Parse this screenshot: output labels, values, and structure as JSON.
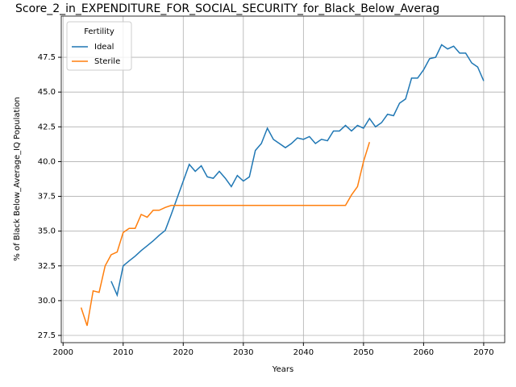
{
  "chart_data": {
    "type": "line",
    "title": "Score_2_in_EXPENDITURE_FOR_SOCIAL_SECURITY_for_Black_Below_Averag",
    "xlabel": "Years",
    "ylabel": "% of Black Below_Average_IQ Population",
    "legend_title": "Fertility",
    "legend_loc": "upper left",
    "grid": true,
    "xlim": [
      1999.7,
      2073.5
    ],
    "xticks": [
      2000,
      2010,
      2020,
      2030,
      2040,
      2050,
      2060,
      2070
    ],
    "ylim": [
      26.98,
      50.46
    ],
    "yticks": [
      27.5,
      {
        "value": 30,
        "label": "30.0"
      },
      32.5,
      {
        "value": 35,
        "label": "35.0"
      },
      37.5,
      {
        "value": 40,
        "label": "40.0"
      },
      42.5,
      {
        "value": 45,
        "label": "45.0"
      },
      47.5
    ],
    "series": [
      {
        "name": "Ideal",
        "color": "#1f77b4",
        "x": [
          2008,
          2009,
          2010,
          2011,
          2012,
          2013,
          2014,
          2015,
          2016,
          2017,
          2018,
          2019,
          2020,
          2021,
          2022,
          2023,
          2024,
          2025,
          2026,
          2027,
          2028,
          2029,
          2030,
          2031,
          2032,
          2033,
          2034,
          2035,
          2036,
          2037,
          2038,
          2039,
          2040,
          2041,
          2042,
          2043,
          2044,
          2045,
          2046,
          2047,
          2048,
          2049,
          2050,
          2051,
          2052,
          2053,
          2054,
          2055,
          2056,
          2057,
          2058,
          2059,
          2060,
          2061,
          2062,
          2063,
          2064,
          2065,
          2066,
          2067,
          2068,
          2069,
          2070
        ],
        "values": [
          31.4,
          30.4,
          32.5,
          32.86,
          33.2,
          33.6,
          33.95,
          34.3,
          34.7,
          35.05,
          36.2,
          37.4,
          38.6,
          39.8,
          39.3,
          39.7,
          38.9,
          38.8,
          39.3,
          38.8,
          38.2,
          39.0,
          38.6,
          38.9,
          40.8,
          41.3,
          42.4,
          41.6,
          41.3,
          41.0,
          41.3,
          41.7,
          41.6,
          41.8,
          41.3,
          41.6,
          41.5,
          42.2,
          42.2,
          42.6,
          42.2,
          42.6,
          42.4,
          43.1,
          42.5,
          42.8,
          43.4,
          43.3,
          44.2,
          44.5,
          46.0,
          46.0,
          46.6,
          47.4,
          47.5,
          48.4,
          48.1,
          48.3,
          47.8,
          47.8,
          47.1,
          46.8,
          45.8
        ]
      },
      {
        "name": "Sterile",
        "color": "#ff7f0e",
        "x": [
          2003,
          2004,
          2005,
          2006,
          2007,
          2008,
          2009,
          2010,
          2011,
          2012,
          2013,
          2014,
          2015,
          2016,
          2017,
          2018,
          2019,
          2020,
          2021,
          2022,
          2023,
          2024,
          2025,
          2026,
          2027,
          2028,
          2029,
          2030,
          2031,
          2032,
          2033,
          2034,
          2035,
          2036,
          2037,
          2038,
          2039,
          2040,
          2041,
          2042,
          2043,
          2044,
          2045,
          2046,
          2047,
          2048,
          2049,
          2050,
          2051
        ],
        "values": [
          29.5,
          28.2,
          30.7,
          30.6,
          32.5,
          33.3,
          33.5,
          34.9,
          35.2,
          35.2,
          36.2,
          36.0,
          36.5,
          36.5,
          36.7,
          36.85,
          36.85,
          36.85,
          36.85,
          36.85,
          36.85,
          36.85,
          36.85,
          36.85,
          36.85,
          36.85,
          36.85,
          36.85,
          36.85,
          36.85,
          36.85,
          36.85,
          36.85,
          36.85,
          36.85,
          36.85,
          36.85,
          36.85,
          36.85,
          36.85,
          36.85,
          36.85,
          36.85,
          36.85,
          36.85,
          37.6,
          38.2,
          40.0,
          41.4
        ]
      }
    ]
  }
}
